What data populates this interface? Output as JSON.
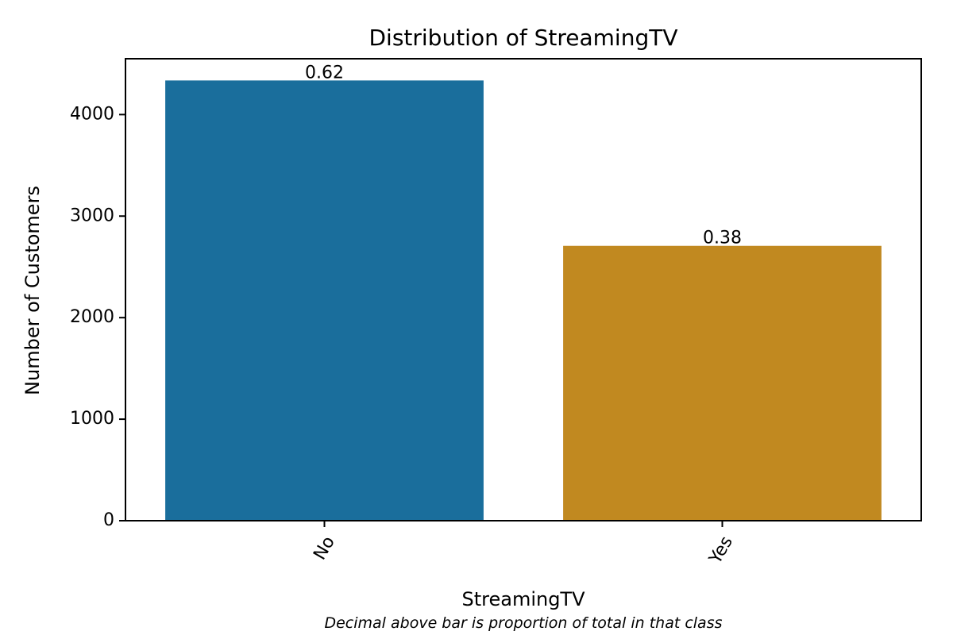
{
  "chart_data": {
    "type": "bar",
    "title": "Distribution of StreamingTV",
    "xlabel": "StreamingTV",
    "ylabel": "Number of Customers",
    "caption": "Decimal above bar is proportion of total in that class",
    "categories": [
      "No",
      "Yes"
    ],
    "values": [
      4336,
      2707
    ],
    "bar_labels": [
      "0.62",
      "0.38"
    ],
    "colors": [
      "#1a6e9c",
      "#c18920"
    ],
    "ylim": [
      0,
      4550
    ],
    "yticks": [
      0,
      1000,
      2000,
      3000,
      4000
    ],
    "ytick_labels": [
      "0",
      "1000",
      "2000",
      "3000",
      "4000"
    ],
    "xtick_rotation_deg": 60,
    "grid": false,
    "legend": "none"
  }
}
